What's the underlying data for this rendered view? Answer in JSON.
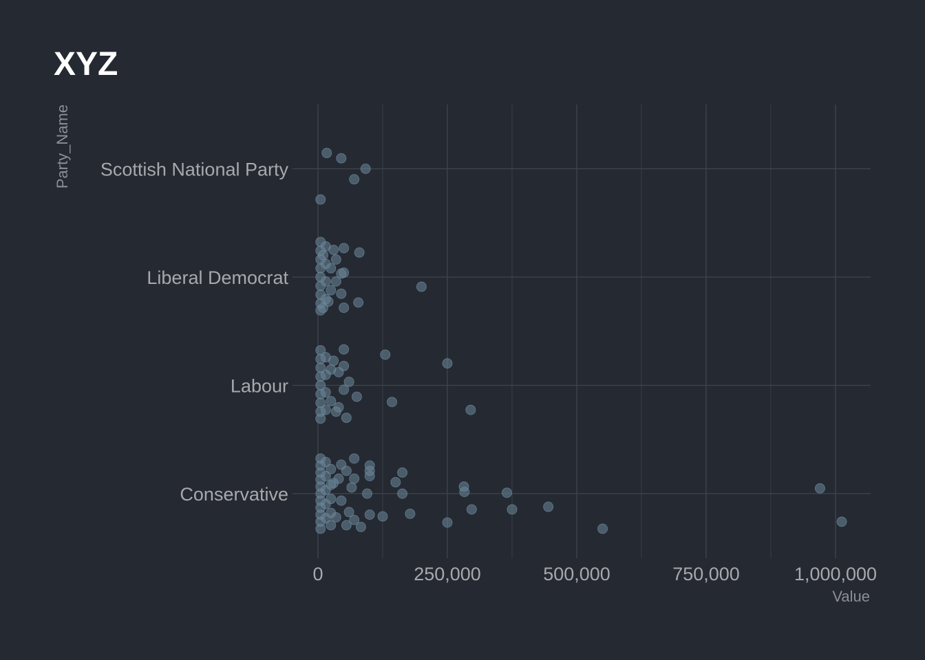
{
  "chart_data": {
    "type": "scatter",
    "title": "XYZ",
    "xlabel": "Value",
    "ylabel": "Party_Name",
    "xlim": [
      0,
      1060000
    ],
    "x_ticks": [
      0,
      250000,
      500000,
      750000,
      1000000
    ],
    "x_tick_labels": [
      "0",
      "250,000",
      "500,000",
      "750,000",
      "1,000,000"
    ],
    "categories": [
      "Conservative",
      "Labour",
      "Liberal Democrat",
      "Scottish National Party"
    ],
    "grid": true,
    "legend": "none",
    "point_color": "#6b8799",
    "jitter_range": 0.4,
    "series": [
      {
        "category": "Scottish National Party",
        "points": [
          {
            "x": 17000,
            "o": 0.18
          },
          {
            "x": 45000,
            "o": 0.12
          },
          {
            "x": 92000,
            "o": 0.0
          },
          {
            "x": 70000,
            "o": -0.12
          },
          {
            "x": 5000,
            "o": -0.35
          }
        ]
      },
      {
        "category": "Liberal Democrat",
        "points": [
          {
            "x": 80000,
            "o": 0.28
          },
          {
            "x": 200000,
            "o": -0.11
          },
          {
            "x": 50000,
            "o": 0.05
          },
          {
            "x": 78000,
            "o": -0.29
          },
          {
            "x": 50000,
            "o": -0.35
          },
          {
            "x": 30000,
            "o": 0.31
          },
          {
            "x": 50000,
            "o": 0.33
          },
          {
            "x": 45000,
            "o": 0.04
          },
          {
            "x": 45000,
            "o": -0.19
          },
          {
            "x": 20000,
            "o": -0.28
          },
          {
            "x": 5000,
            "o": 0.4
          },
          {
            "x": 5000,
            "o": 0.3
          },
          {
            "x": 5000,
            "o": 0.2
          },
          {
            "x": 5000,
            "o": 0.1
          },
          {
            "x": 5000,
            "o": 0.0
          },
          {
            "x": 5000,
            "o": -0.1
          },
          {
            "x": 5000,
            "o": -0.2
          },
          {
            "x": 5000,
            "o": -0.3
          },
          {
            "x": 5000,
            "o": -0.38
          },
          {
            "x": 15000,
            "o": 0.35
          },
          {
            "x": 15000,
            "o": 0.15
          },
          {
            "x": 15000,
            "o": -0.05
          },
          {
            "x": 15000,
            "o": -0.25
          },
          {
            "x": 25000,
            "o": 0.1
          },
          {
            "x": 25000,
            "o": -0.15
          },
          {
            "x": 35000,
            "o": 0.2
          },
          {
            "x": 35000,
            "o": -0.05
          },
          {
            "x": 10000,
            "o": 0.25
          },
          {
            "x": 10000,
            "o": -0.35
          }
        ]
      },
      {
        "category": "Labour",
        "points": [
          {
            "x": 130000,
            "o": 0.35
          },
          {
            "x": 250000,
            "o": 0.25
          },
          {
            "x": 50000,
            "o": 0.41
          },
          {
            "x": 60000,
            "o": 0.04
          },
          {
            "x": 75000,
            "o": -0.13
          },
          {
            "x": 143000,
            "o": -0.19
          },
          {
            "x": 295000,
            "o": -0.28
          },
          {
            "x": 55000,
            "o": -0.37
          },
          {
            "x": 50000,
            "o": -0.05
          },
          {
            "x": 50000,
            "o": 0.22
          },
          {
            "x": 30000,
            "o": 0.28
          },
          {
            "x": 35000,
            "o": -0.3
          },
          {
            "x": 5000,
            "o": 0.4
          },
          {
            "x": 5000,
            "o": 0.3
          },
          {
            "x": 5000,
            "o": 0.2
          },
          {
            "x": 5000,
            "o": 0.1
          },
          {
            "x": 5000,
            "o": 0.0
          },
          {
            "x": 5000,
            "o": -0.1
          },
          {
            "x": 5000,
            "o": -0.2
          },
          {
            "x": 5000,
            "o": -0.3
          },
          {
            "x": 5000,
            "o": -0.38
          },
          {
            "x": 15000,
            "o": 0.32
          },
          {
            "x": 15000,
            "o": 0.12
          },
          {
            "x": 15000,
            "o": -0.08
          },
          {
            "x": 15000,
            "o": -0.28
          },
          {
            "x": 25000,
            "o": 0.18
          },
          {
            "x": 25000,
            "o": -0.18
          },
          {
            "x": 40000,
            "o": 0.15
          },
          {
            "x": 40000,
            "o": -0.25
          }
        ]
      },
      {
        "category": "Conservative",
        "points": [
          {
            "x": 970000,
            "o": 0.06
          },
          {
            "x": 1012000,
            "o": -0.32
          },
          {
            "x": 550000,
            "o": -0.4
          },
          {
            "x": 445000,
            "o": -0.15
          },
          {
            "x": 375000,
            "o": -0.18
          },
          {
            "x": 365000,
            "o": 0.01
          },
          {
            "x": 282000,
            "o": 0.08
          },
          {
            "x": 283000,
            "o": 0.02
          },
          {
            "x": 297000,
            "o": -0.18
          },
          {
            "x": 250000,
            "o": -0.33
          },
          {
            "x": 178000,
            "o": -0.23
          },
          {
            "x": 163000,
            "o": 0.24
          },
          {
            "x": 150000,
            "o": 0.13
          },
          {
            "x": 163000,
            "o": 0.0
          },
          {
            "x": 100000,
            "o": 0.32
          },
          {
            "x": 100000,
            "o": 0.26
          },
          {
            "x": 100000,
            "o": 0.2
          },
          {
            "x": 95000,
            "o": 0.0
          },
          {
            "x": 100000,
            "o": -0.24
          },
          {
            "x": 125000,
            "o": -0.26
          },
          {
            "x": 83000,
            "o": -0.38
          },
          {
            "x": 70000,
            "o": 0.4
          },
          {
            "x": 70000,
            "o": 0.17
          },
          {
            "x": 70000,
            "o": -0.3
          },
          {
            "x": 65000,
            "o": 0.07
          },
          {
            "x": 60000,
            "o": -0.21
          },
          {
            "x": 55000,
            "o": 0.26
          },
          {
            "x": 55000,
            "o": -0.36
          },
          {
            "x": 45000,
            "o": 0.33
          },
          {
            "x": 45000,
            "o": -0.08
          },
          {
            "x": 40000,
            "o": 0.17
          },
          {
            "x": 35000,
            "o": -0.27
          },
          {
            "x": 5000,
            "o": 0.4
          },
          {
            "x": 5000,
            "o": 0.32
          },
          {
            "x": 5000,
            "o": 0.24
          },
          {
            "x": 5000,
            "o": 0.16
          },
          {
            "x": 5000,
            "o": 0.08
          },
          {
            "x": 5000,
            "o": 0.0
          },
          {
            "x": 5000,
            "o": -0.08
          },
          {
            "x": 5000,
            "o": -0.16
          },
          {
            "x": 5000,
            "o": -0.24
          },
          {
            "x": 5000,
            "o": -0.32
          },
          {
            "x": 5000,
            "o": -0.4
          },
          {
            "x": 15000,
            "o": 0.36
          },
          {
            "x": 15000,
            "o": 0.2
          },
          {
            "x": 15000,
            "o": 0.04
          },
          {
            "x": 15000,
            "o": -0.12
          },
          {
            "x": 15000,
            "o": -0.28
          },
          {
            "x": 25000,
            "o": 0.28
          },
          {
            "x": 25000,
            "o": 0.1
          },
          {
            "x": 25000,
            "o": -0.06
          },
          {
            "x": 25000,
            "o": -0.22
          },
          {
            "x": 25000,
            "o": -0.36
          },
          {
            "x": 30000,
            "o": 0.12
          }
        ]
      }
    ]
  }
}
